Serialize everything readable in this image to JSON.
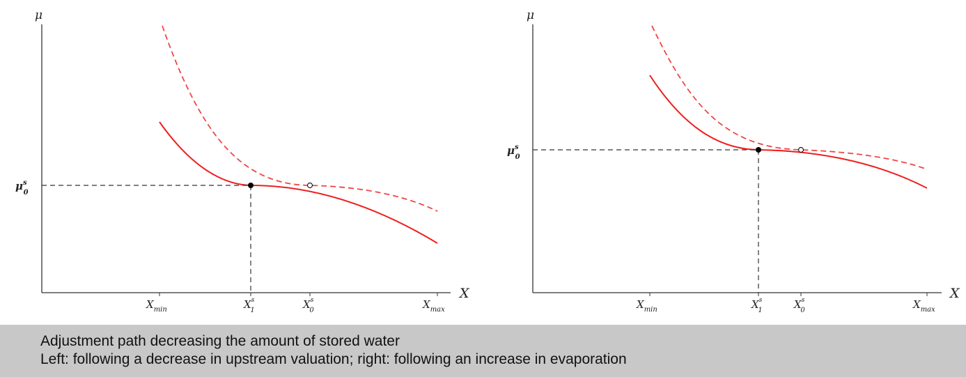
{
  "colors": {
    "curve": "#f01e1e",
    "caption_background": "#c8c8c8",
    "axes": "#333333"
  },
  "panels": [
    {
      "y_axis_label": "μ",
      "x_axis_label": "X",
      "y_level_label": "μ",
      "y_level_superscript": "s",
      "y_level_subscript": "0",
      "x_ticks": [
        {
          "base": "X",
          "sub": "min",
          "sup": ""
        },
        {
          "base": "X",
          "sub": "1",
          "sup": "s"
        },
        {
          "base": "X",
          "sub": "0",
          "sup": "s"
        },
        {
          "base": "X",
          "sub": "max",
          "sup": ""
        }
      ]
    },
    {
      "y_axis_label": "μ",
      "x_axis_label": "X",
      "y_level_label": "μ",
      "y_level_superscript": "s",
      "y_level_subscript": "0",
      "x_ticks": [
        {
          "base": "X",
          "sub": "min",
          "sup": ""
        },
        {
          "base": "X",
          "sub": "1",
          "sup": "s"
        },
        {
          "base": "X",
          "sub": "0",
          "sup": "s"
        },
        {
          "base": "X",
          "sub": "max",
          "sup": ""
        }
      ]
    }
  ],
  "caption": {
    "line1": "Adjustment path decreasing the amount of stored water",
    "line2": "Left: following a decrease in upstream valuation; right: following an increase in evaporation"
  }
}
